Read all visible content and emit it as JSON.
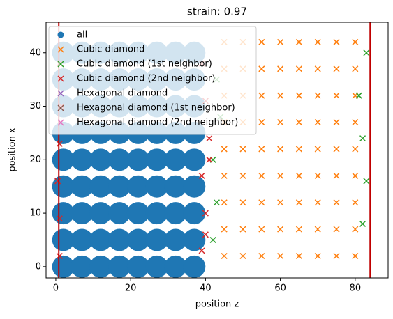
{
  "chart_data": {
    "type": "scatter",
    "title": "strain: 0.97",
    "xlabel": "position z",
    "ylabel": "position x",
    "xlim": [
      -2.6,
      88.8
    ],
    "ylim": [
      -2.1,
      45.7
    ],
    "xticks": [
      0,
      20,
      40,
      60,
      80
    ],
    "yticks": [
      0,
      10,
      20,
      30,
      40
    ],
    "vlines": [
      0.8,
      84
    ],
    "vline_color": "#c00000",
    "legend": "upper left",
    "series": [
      {
        "name": "all",
        "color": "#1f77b4",
        "marker": "o",
        "x": [
          2,
          2,
          2,
          2,
          2,
          2,
          2,
          2,
          2,
          7,
          7,
          7,
          7,
          7,
          7,
          7,
          7,
          7,
          12,
          12,
          12,
          12,
          12,
          12,
          12,
          12,
          12,
          17,
          17,
          17,
          17,
          17,
          17,
          17,
          17,
          17,
          22,
          22,
          22,
          22,
          22,
          22,
          22,
          22,
          22,
          27,
          27,
          27,
          27,
          27,
          27,
          27,
          27,
          27,
          32,
          32,
          32,
          32,
          32,
          32,
          32,
          32,
          32,
          37,
          37,
          37,
          37,
          37,
          37,
          37,
          37,
          37
        ],
        "values": [
          0,
          5,
          10,
          15,
          20,
          25,
          30,
          35,
          40,
          0,
          5,
          10,
          15,
          20,
          25,
          30,
          35,
          40,
          0,
          5,
          10,
          15,
          20,
          25,
          30,
          35,
          40,
          0,
          5,
          10,
          15,
          20,
          25,
          30,
          35,
          40,
          0,
          5,
          10,
          15,
          20,
          25,
          30,
          35,
          40,
          0,
          5,
          10,
          15,
          20,
          25,
          30,
          35,
          40,
          0,
          5,
          10,
          15,
          20,
          25,
          30,
          35,
          40,
          0,
          5,
          10,
          15,
          20,
          25,
          30,
          35,
          40
        ]
      },
      {
        "name": "Cubic diamond",
        "color": "#ff7f0e",
        "marker": "x",
        "x": [
          45,
          45,
          45,
          45,
          45,
          45,
          45,
          45,
          45,
          50,
          50,
          50,
          50,
          50,
          50,
          50,
          50,
          50,
          55,
          55,
          55,
          55,
          55,
          55,
          55,
          55,
          55,
          60,
          60,
          60,
          60,
          60,
          60,
          60,
          60,
          60,
          65,
          65,
          65,
          65,
          65,
          65,
          65,
          65,
          65,
          70,
          70,
          70,
          70,
          70,
          70,
          70,
          70,
          70,
          75,
          75,
          75,
          75,
          75,
          75,
          75,
          75,
          75,
          80,
          80,
          80,
          80,
          80,
          80,
          80,
          80,
          80
        ],
        "values": [
          2,
          7,
          12,
          17,
          22,
          27,
          32,
          37,
          42,
          2,
          7,
          12,
          17,
          22,
          27,
          32,
          37,
          42,
          2,
          7,
          12,
          17,
          22,
          27,
          32,
          37,
          42,
          2,
          7,
          12,
          17,
          22,
          27,
          32,
          37,
          42,
          2,
          7,
          12,
          17,
          22,
          27,
          32,
          37,
          42,
          2,
          7,
          12,
          17,
          22,
          27,
          32,
          37,
          42,
          2,
          7,
          12,
          17,
          22,
          27,
          32,
          37,
          42,
          2,
          7,
          12,
          17,
          22,
          27,
          32,
          37,
          42
        ]
      },
      {
        "name": "Cubic diamond (1st neighbor)",
        "color": "#2ca02c",
        "marker": "x",
        "x": [
          42,
          43,
          42,
          44,
          43,
          82,
          83,
          82,
          81,
          83
        ],
        "values": [
          5,
          12,
          20,
          28,
          35,
          8,
          16,
          24,
          32,
          40
        ]
      },
      {
        "name": "Cubic diamond (2nd neighbor)",
        "color": "#d62728",
        "marker": "x",
        "x": [
          1,
          1,
          0.5,
          1,
          1.5,
          1,
          39,
          40,
          39,
          41,
          40,
          39,
          41,
          40
        ],
        "values": [
          2,
          9,
          16,
          23,
          30,
          38,
          3,
          10,
          17,
          24,
          31,
          38,
          20,
          6
        ]
      },
      {
        "name": "Hexagonal diamond",
        "color": "#9467bd",
        "marker": "x",
        "x": [],
        "values": []
      },
      {
        "name": "Hexagonal diamond (1st neighbor)",
        "color": "#8c564b",
        "marker": "x",
        "x": [],
        "values": []
      },
      {
        "name": "Hexagonal diamond (2nd neighbor)",
        "color": "#e377c2",
        "marker": "x",
        "x": [],
        "values": []
      }
    ]
  }
}
